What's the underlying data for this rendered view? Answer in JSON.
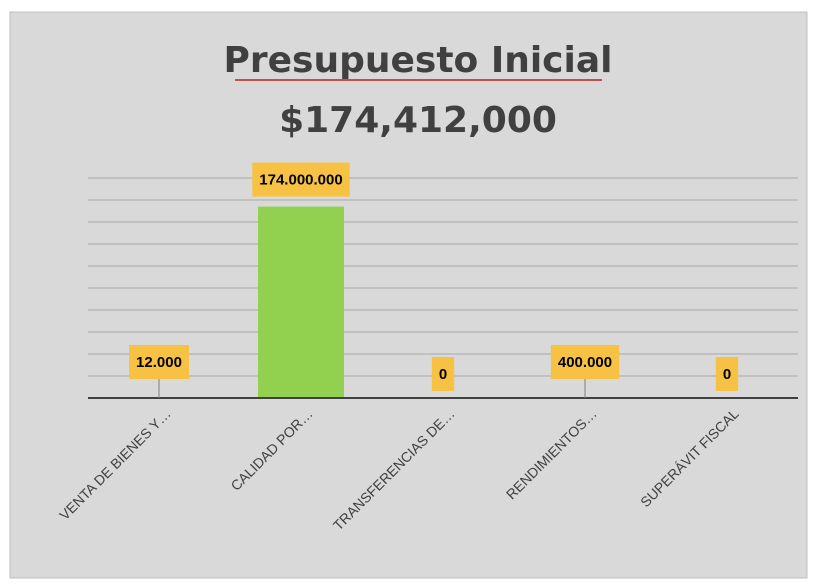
{
  "chart_data": {
    "type": "bar",
    "title": "Presupuesto Inicial",
    "subtitle": "$174,412,000",
    "categories": [
      "VENTA DE BIENES Y…",
      "CALIDAD  POR…",
      "TRANSFERENCIAS DE…",
      "RENDIMIENTOS…",
      "SUPERÁVIT FISCAL"
    ],
    "values": [
      12000,
      174000000,
      0,
      400000,
      0
    ],
    "value_labels": [
      "12.000",
      "174.000.000",
      "0",
      "400.000",
      "0"
    ],
    "color": "#92d050",
    "label_color": "#f7c244",
    "ylim": [
      0,
      200000000
    ],
    "yticks": [
      0,
      20000000,
      40000000,
      60000000,
      80000000,
      100000000,
      120000000,
      140000000,
      160000000,
      180000000,
      200000000
    ],
    "grid": true
  }
}
